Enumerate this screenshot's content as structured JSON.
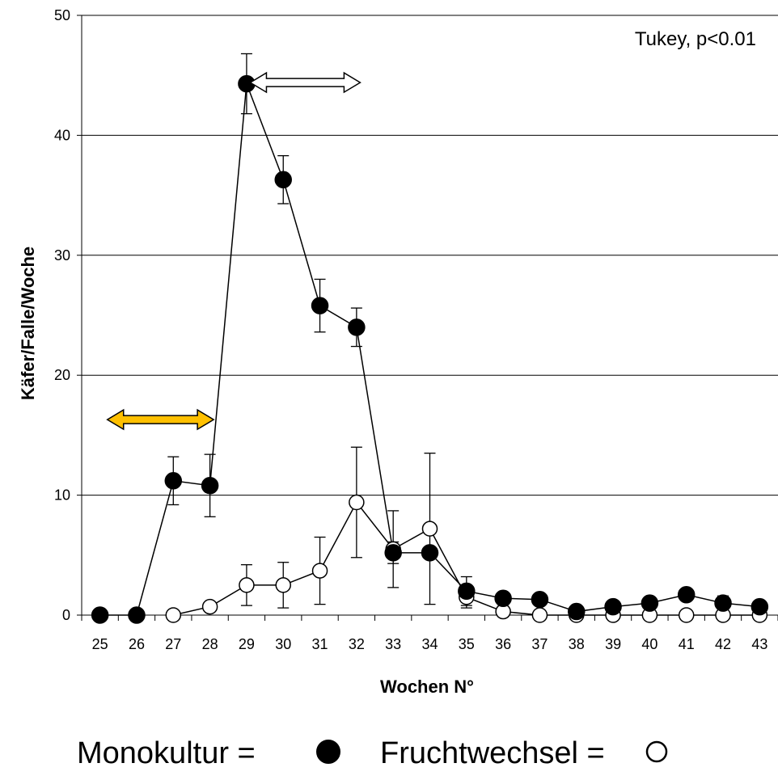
{
  "chart_data": {
    "type": "line",
    "title": "",
    "xlabel": "Wochen N°",
    "ylabel": "Käfer/Falle/Woche",
    "x": [
      25,
      26,
      27,
      28,
      29,
      30,
      31,
      32,
      33,
      34,
      35,
      36,
      37,
      38,
      39,
      40,
      41,
      42,
      43
    ],
    "xlim": [
      25,
      43
    ],
    "ylim": [
      0,
      50
    ],
    "yticks": [
      0,
      10,
      20,
      30,
      40,
      50
    ],
    "grid": "horizontal",
    "annotation": "Tukey, p<0.01",
    "series": [
      {
        "name": "Monokultur",
        "marker": "filled-circle",
        "values": [
          0,
          0,
          11.2,
          10.8,
          44.3,
          36.3,
          25.8,
          24.0,
          5.2,
          5.2,
          2.0,
          1.4,
          1.3,
          0.3,
          0.7,
          1.0,
          1.7,
          1.0,
          0.7
        ],
        "error": [
          null,
          null,
          2.0,
          2.6,
          2.5,
          2.0,
          2.2,
          1.6,
          0.9,
          null,
          1.2,
          0.4,
          0.4,
          null,
          null,
          null,
          null,
          0.6,
          null
        ]
      },
      {
        "name": "Fruchtwechsel",
        "marker": "open-circle",
        "values": [
          null,
          null,
          0,
          0.7,
          2.5,
          2.5,
          3.7,
          9.4,
          5.5,
          7.2,
          1.5,
          0.3,
          0,
          0,
          0,
          0,
          0,
          0,
          0
        ],
        "error": [
          null,
          null,
          null,
          null,
          1.7,
          1.9,
          2.8,
          4.6,
          3.2,
          6.3,
          0.9,
          null,
          null,
          null,
          null,
          null,
          null,
          null,
          null
        ]
      }
    ],
    "arrows": [
      {
        "from": 25.2,
        "to": 28.1,
        "y": 16.3,
        "fill": "#FFC000",
        "stroke": "#000000"
      },
      {
        "from": 29.1,
        "to": 32.1,
        "y": 44.4,
        "fill": "#FFFFFF",
        "stroke": "#000000"
      }
    ],
    "legend": {
      "position": "bottom",
      "items": [
        {
          "text": "Monokultur =",
          "marker": "filled-circle"
        },
        {
          "text": "Fruchtwechsel =",
          "marker": "open-circle"
        }
      ]
    }
  }
}
